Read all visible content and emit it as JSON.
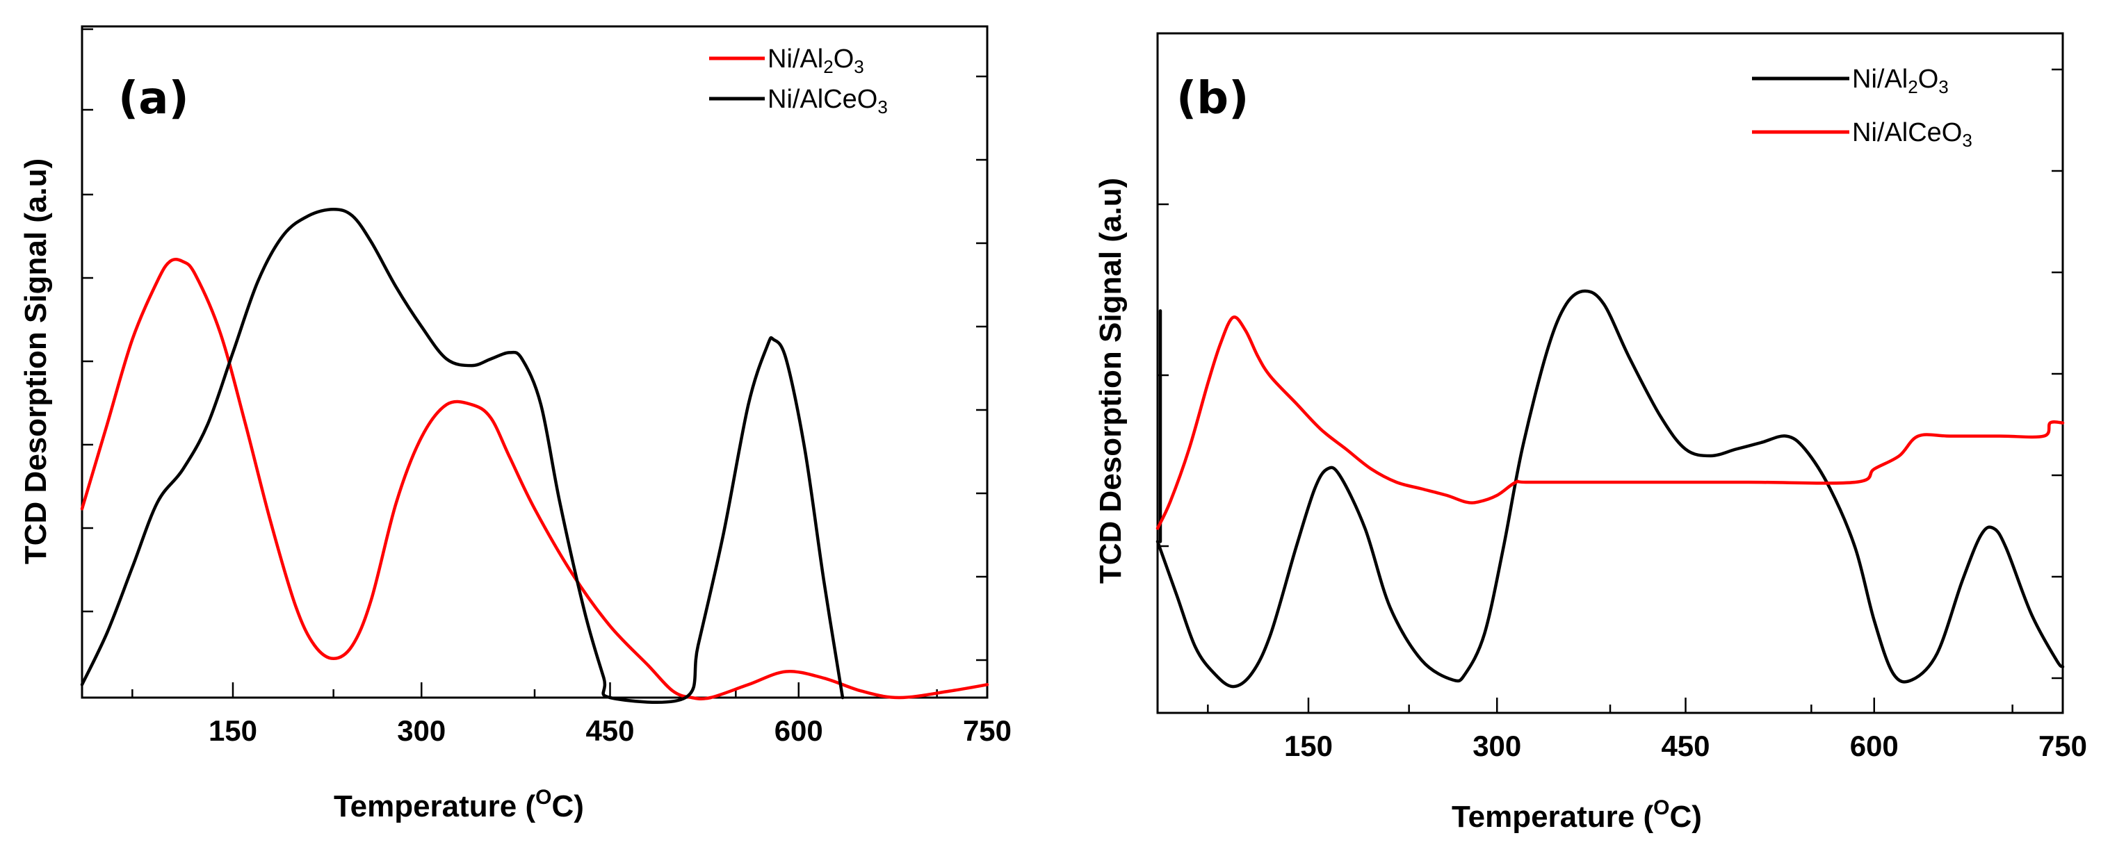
{
  "chart_data": [
    {
      "type": "line",
      "panel_label": "(a)",
      "xlabel": "Temperature (",
      "xlabel_sup": "O",
      "xlabel_unit": "C)",
      "ylabel": "TCD Desorption Signal (a.u)",
      "xlim": [
        30,
        750
      ],
      "ylim": [
        0,
        100
      ],
      "xticks": [
        150,
        300,
        450,
        600,
        750
      ],
      "legend_position": "top-right",
      "series": [
        {
          "name": "Ni/Al2O3",
          "legend_parts": [
            "Ni/Al",
            "2",
            "O",
            "3"
          ],
          "color": "#ff0000",
          "x": [
            30,
            50,
            70,
            90,
            100,
            110,
            120,
            140,
            160,
            180,
            200,
            215,
            230,
            245,
            260,
            280,
            300,
            320,
            340,
            355,
            370,
            390,
            420,
            450,
            480,
            500,
            515,
            530,
            560,
            590,
            620,
            650,
            680,
            720,
            750
          ],
          "y": [
            29,
            42,
            55,
            64,
            67,
            67,
            65,
            56,
            42,
            27,
            14,
            8,
            6,
            8,
            15,
            30,
            40,
            45,
            45,
            43,
            37,
            29,
            19,
            11,
            5,
            1,
            0,
            0,
            2,
            4,
            3,
            1,
            0,
            1,
            2
          ]
        },
        {
          "name": "Ni/AlCeO3",
          "legend_parts": [
            "Ni/AlCeO",
            "3"
          ],
          "color": "#000000",
          "x": [
            30,
            50,
            70,
            90,
            110,
            130,
            150,
            170,
            190,
            210,
            230,
            245,
            260,
            280,
            300,
            320,
            340,
            355,
            370,
            380,
            395,
            410,
            430,
            445,
            450,
            510,
            520,
            540,
            560,
            575,
            580,
            590,
            605,
            620,
            635
          ],
          "y": [
            2,
            10,
            20,
            30,
            35,
            42,
            53,
            64,
            71,
            74,
            75,
            74,
            70,
            63,
            57,
            52,
            51,
            52,
            53,
            52,
            45,
            30,
            13,
            3,
            0,
            0,
            8,
            25,
            45,
            54,
            55,
            52,
            38,
            18,
            0
          ]
        }
      ]
    },
    {
      "type": "line",
      "panel_label": "(b)",
      "xlabel": "Temperature (",
      "xlabel_sup": "O",
      "xlabel_unit": "C)",
      "ylabel": "TCD Desorption Signal (a.u)",
      "xlim": [
        30,
        750
      ],
      "ylim": [
        0,
        100
      ],
      "xticks": [
        150,
        300,
        450,
        600,
        750
      ],
      "legend_position": "top-right",
      "series": [
        {
          "name": "Ni/Al2O3",
          "legend_parts": [
            "Ni/Al",
            "2",
            "O",
            "3"
          ],
          "color": "#000000",
          "x": [
            30,
            45,
            60,
            75,
            90,
            105,
            120,
            140,
            155,
            165,
            175,
            195,
            215,
            240,
            265,
            275,
            290,
            305,
            320,
            340,
            355,
            370,
            385,
            405,
            430,
            450,
            470,
            490,
            510,
            530,
            545,
            565,
            585,
            600,
            615,
            630,
            650,
            670,
            685,
            695,
            705,
            725,
            745,
            750
          ],
          "y": [
            26,
            18,
            10,
            6,
            4,
            6,
            12,
            25,
            34,
            37,
            36,
            28,
            16,
            8,
            5,
            6,
            12,
            25,
            40,
            55,
            62,
            64,
            62,
            54,
            45,
            40,
            39,
            40,
            41,
            42,
            40,
            34,
            25,
            14,
            6,
            5,
            9,
            20,
            27,
            28,
            25,
            15,
            8,
            7
          ],
          "extra_start": [
            [
              30,
              61
            ],
            [
              30,
              26
            ]
          ]
        },
        {
          "name": "Ni/AlCeO3",
          "legend_parts": [
            "Ni/AlCeO",
            "3"
          ],
          "color": "#ff0000",
          "x": [
            30,
            40,
            55,
            70,
            80,
            90,
            100,
            110,
            120,
            140,
            160,
            180,
            200,
            220,
            240,
            260,
            275,
            285,
            300,
            315,
            325,
            400,
            500,
            585,
            600,
            620,
            635,
            660,
            700,
            735,
            740,
            750
          ],
          "y": [
            28,
            32,
            40,
            50,
            56,
            60,
            58,
            54,
            51,
            47,
            43,
            40,
            37,
            35,
            34,
            33,
            32,
            32,
            33,
            35,
            35,
            35,
            35,
            35,
            37,
            39,
            42,
            42,
            42,
            42,
            44,
            44
          ]
        }
      ]
    }
  ]
}
